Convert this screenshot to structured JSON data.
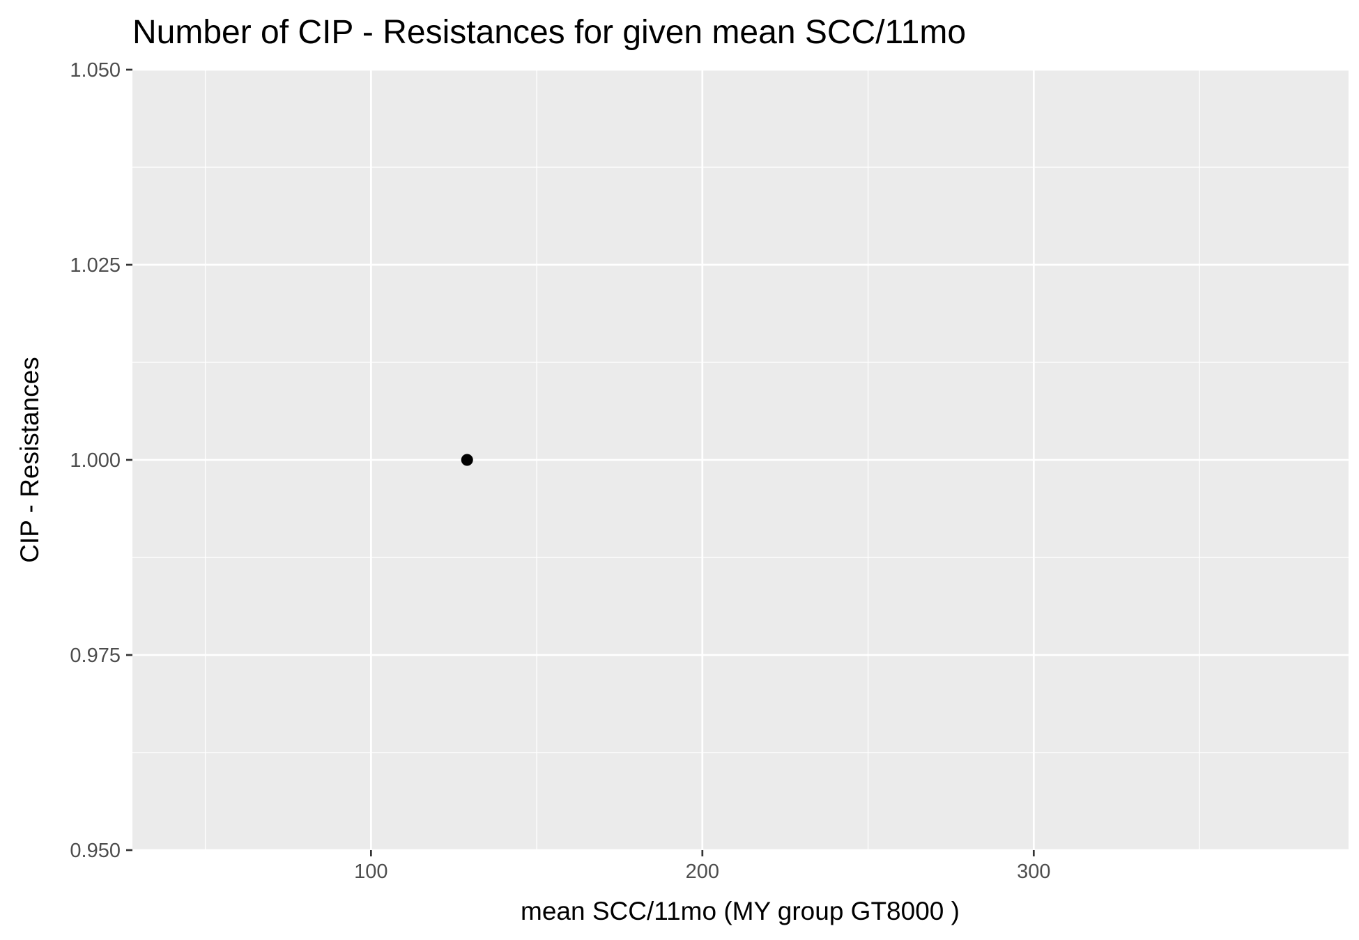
{
  "chart_data": {
    "type": "scatter",
    "title": "Number of CIP - Resistances for given mean SCC/11mo",
    "xlabel": "mean SCC/11mo     (MY group GT8000 )",
    "ylabel": "CIP - Resistances",
    "xlim": [
      28,
      395
    ],
    "ylim": [
      0.95,
      1.05
    ],
    "x_ticks": [
      100,
      200,
      300
    ],
    "x_tick_labels": [
      "100",
      "200",
      "300"
    ],
    "x_minor_ticks": [
      50,
      150,
      250,
      350
    ],
    "y_ticks": [
      0.95,
      0.975,
      1.0,
      1.025,
      1.05
    ],
    "y_tick_labels": [
      "0.950",
      "0.975",
      "1.000",
      "1.025",
      "1.050"
    ],
    "y_minor_ticks": [
      0.9625,
      0.9875,
      1.0125,
      1.0375
    ],
    "grid": true,
    "legend": "none",
    "colors": {
      "panel_background": "#ebebeb",
      "grid_line": "#ffffff",
      "point": "#000000",
      "axis_tick": "#333333"
    },
    "series": [
      {
        "x": [
          129
        ],
        "y": [
          1.0
        ]
      }
    ]
  }
}
